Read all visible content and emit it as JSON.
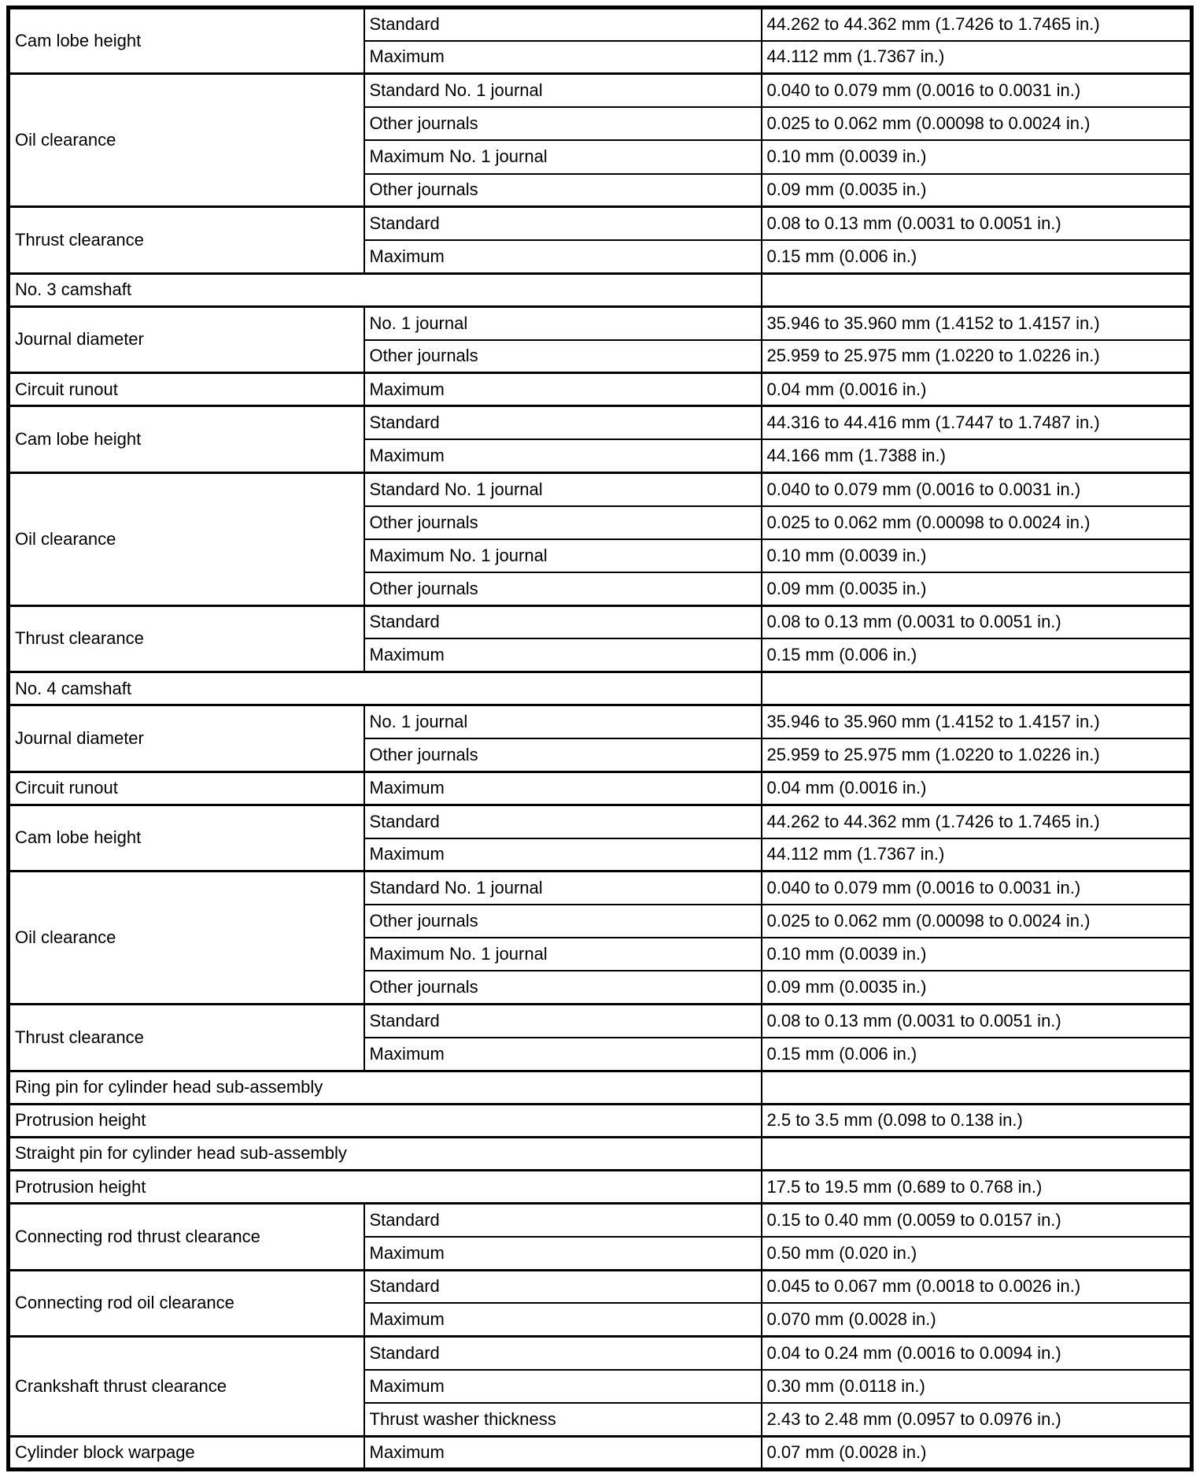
{
  "colors": {
    "background": "#ffffff",
    "border": "#000000",
    "text": "#000000"
  },
  "table": {
    "rows": [
      {
        "type": "group",
        "item": "Cam lobe height",
        "subs": [
          [
            "Standard",
            "44.262 to 44.362 mm (1.7426 to 1.7465 in.)"
          ],
          [
            "Maximum",
            "44.112 mm (1.7367 in.)"
          ]
        ]
      },
      {
        "type": "group",
        "item": "Oil clearance",
        "subs": [
          [
            "Standard No. 1 journal",
            "0.040 to 0.079 mm (0.0016 to 0.0031 in.)"
          ],
          [
            "Other journals",
            "0.025 to 0.062 mm (0.00098 to 0.0024 in.)"
          ],
          [
            "Maximum No. 1 journal",
            "0.10 mm (0.0039 in.)"
          ],
          [
            "Other journals",
            "0.09 mm (0.0035 in.)"
          ]
        ]
      },
      {
        "type": "group",
        "item": "Thrust clearance",
        "subs": [
          [
            "Standard",
            "0.08 to 0.13 mm (0.0031 to 0.0051 in.)"
          ],
          [
            "Maximum",
            "0.15 mm (0.006 in.)"
          ]
        ]
      },
      {
        "type": "section",
        "label": "No. 3 camshaft"
      },
      {
        "type": "group",
        "item": "Journal diameter",
        "subs": [
          [
            "No. 1 journal",
            "35.946 to 35.960 mm (1.4152 to 1.4157 in.)"
          ],
          [
            "Other journals",
            "25.959 to 25.975 mm (1.0220 to 1.0226 in.)"
          ]
        ]
      },
      {
        "type": "group",
        "item": "Circuit runout",
        "subs": [
          [
            "Maximum",
            "0.04 mm (0.0016 in.)"
          ]
        ]
      },
      {
        "type": "group",
        "item": "Cam lobe height",
        "subs": [
          [
            "Standard",
            "44.316 to 44.416 mm (1.7447 to 1.7487 in.)"
          ],
          [
            "Maximum",
            "44.166 mm (1.7388 in.)"
          ]
        ]
      },
      {
        "type": "group",
        "item": "Oil clearance",
        "subs": [
          [
            "Standard No. 1 journal",
            "0.040 to 0.079 mm (0.0016 to 0.0031 in.)"
          ],
          [
            "Other journals",
            "0.025 to 0.062 mm (0.00098 to 0.0024 in.)"
          ],
          [
            "Maximum No. 1 journal",
            "0.10 mm (0.0039 in.)"
          ],
          [
            "Other journals",
            "0.09 mm (0.0035 in.)"
          ]
        ]
      },
      {
        "type": "group",
        "item": "Thrust clearance",
        "subs": [
          [
            "Standard",
            "0.08 to 0.13 mm (0.0031 to 0.0051 in.)"
          ],
          [
            "Maximum",
            "0.15 mm (0.006 in.)"
          ]
        ]
      },
      {
        "type": "section",
        "label": "No. 4 camshaft"
      },
      {
        "type": "group",
        "item": "Journal diameter",
        "subs": [
          [
            "No. 1 journal",
            "35.946 to 35.960 mm (1.4152 to 1.4157 in.)"
          ],
          [
            "Other journals",
            "25.959 to 25.975 mm (1.0220 to 1.0226 in.)"
          ]
        ]
      },
      {
        "type": "group",
        "item": "Circuit runout",
        "subs": [
          [
            "Maximum",
            "0.04 mm (0.0016 in.)"
          ]
        ]
      },
      {
        "type": "group",
        "item": "Cam lobe height",
        "subs": [
          [
            "Standard",
            "44.262 to 44.362 mm (1.7426 to 1.7465 in.)"
          ],
          [
            "Maximum",
            "44.112 mm (1.7367 in.)"
          ]
        ]
      },
      {
        "type": "group",
        "item": "Oil clearance",
        "subs": [
          [
            "Standard No. 1 journal",
            "0.040 to 0.079 mm (0.0016 to 0.0031 in.)"
          ],
          [
            "Other journals",
            "0.025 to 0.062 mm (0.00098 to 0.0024 in.)"
          ],
          [
            "Maximum No. 1 journal",
            "0.10 mm (0.0039 in.)"
          ],
          [
            "Other journals",
            "0.09 mm (0.0035 in.)"
          ]
        ]
      },
      {
        "type": "group",
        "item": "Thrust clearance",
        "subs": [
          [
            "Standard",
            "0.08 to 0.13 mm (0.0031 to 0.0051 in.)"
          ],
          [
            "Maximum",
            "0.15 mm (0.006 in.)"
          ]
        ]
      },
      {
        "type": "section",
        "label": "Ring pin for cylinder head sub-assembly"
      },
      {
        "type": "wide",
        "item": "Protrusion height",
        "value": "2.5 to 3.5 mm (0.098 to 0.138 in.)"
      },
      {
        "type": "section",
        "label": "Straight pin for cylinder head sub-assembly"
      },
      {
        "type": "wide",
        "item": "Protrusion height",
        "value": "17.5 to 19.5 mm (0.689 to 0.768 in.)"
      },
      {
        "type": "group",
        "item": "Connecting rod thrust clearance",
        "subs": [
          [
            "Standard",
            "0.15 to 0.40 mm (0.0059 to 0.0157 in.)"
          ],
          [
            "Maximum",
            "0.50 mm (0.020 in.)"
          ]
        ]
      },
      {
        "type": "group",
        "item": "Connecting rod oil clearance",
        "subs": [
          [
            "Standard",
            "0.045 to 0.067 mm (0.0018 to 0.0026 in.)"
          ],
          [
            "Maximum",
            "0.070 mm (0.0028 in.)"
          ]
        ]
      },
      {
        "type": "group",
        "item": "Crankshaft thrust clearance",
        "subs": [
          [
            "Standard",
            "0.04 to 0.24 mm (0.0016 to 0.0094 in.)"
          ],
          [
            "Maximum",
            "0.30 mm (0.0118 in.)"
          ],
          [
            "Thrust washer thickness",
            "2.43 to 2.48 mm (0.0957 to 0.0976 in.)"
          ]
        ]
      },
      {
        "type": "group",
        "item": "Cylinder block warpage",
        "subs": [
          [
            "Maximum",
            "0.07 mm (0.0028 in.)"
          ]
        ]
      }
    ]
  }
}
